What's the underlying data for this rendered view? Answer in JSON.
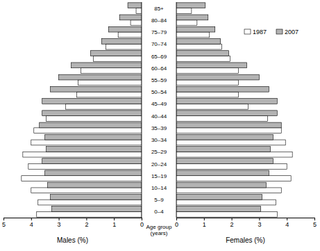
{
  "chart_data": [
    {
      "type": "bar",
      "orientation": "horizontal",
      "x_label": "Males (%)",
      "y_label": "Age group (years)",
      "categories": [
        "0–4",
        "5–9",
        "10–14",
        "15–19",
        "20–24",
        "25–29",
        "30–34",
        "35–39",
        "40–44",
        "45–49",
        "50–54",
        "55–59",
        "60–64",
        "65–69",
        "70–74",
        "75–79",
        "80–84",
        "85+"
      ],
      "xlim": [
        5,
        0
      ],
      "xticks": [
        5,
        4,
        3,
        2,
        1,
        0
      ],
      "series": [
        {
          "name": "1987",
          "color": "#ffffff",
          "values": [
            3.8,
            3.75,
            4.0,
            4.35,
            4.1,
            4.3,
            4.0,
            3.9,
            3.45,
            2.75,
            2.35,
            2.3,
            2.2,
            1.75,
            1.3,
            0.85,
            0.4,
            0.2
          ]
        },
        {
          "name": "2007",
          "color": "#b3b3b3",
          "values": [
            3.25,
            3.3,
            3.4,
            3.5,
            3.6,
            3.45,
            3.5,
            3.7,
            3.6,
            3.6,
            3.3,
            3.0,
            2.55,
            1.85,
            1.45,
            1.2,
            0.8,
            0.5
          ]
        }
      ]
    },
    {
      "type": "bar",
      "orientation": "horizontal",
      "x_label": "Females (%)",
      "legend": "upper right",
      "xlim": [
        0,
        5
      ],
      "xticks": [
        0,
        1,
        2,
        3,
        4,
        5
      ],
      "series": [
        {
          "name": "1987",
          "color": "#ffffff",
          "values": [
            3.65,
            3.6,
            3.8,
            4.15,
            4.0,
            4.2,
            3.95,
            3.8,
            3.3,
            2.6,
            2.25,
            2.25,
            2.25,
            1.95,
            1.65,
            1.2,
            0.75,
            0.55
          ]
        },
        {
          "name": "2007",
          "color": "#b3b3b3",
          "values": [
            3.05,
            3.1,
            3.25,
            3.35,
            3.5,
            3.4,
            3.5,
            3.8,
            3.65,
            3.65,
            3.35,
            3.0,
            2.55,
            1.9,
            1.6,
            1.4,
            1.15,
            1.05
          ]
        }
      ]
    }
  ]
}
